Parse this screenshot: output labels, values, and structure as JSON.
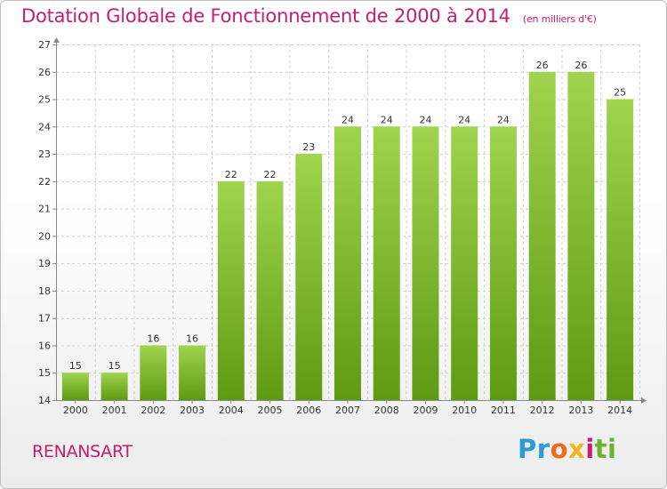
{
  "page": {
    "title": "Dotation Globale de Fonctionnement de 2000 à 2014",
    "subtitle": "(en milliers d'€)",
    "place_name": "RENANSART",
    "logo_text": "Proxiti",
    "logo_colors": [
      "#2f9ad8",
      "#ef6a1a",
      "#f2b51c",
      "#c41e6e",
      "#6bb22f"
    ]
  },
  "chart_data": {
    "type": "bar",
    "title": "Dotation Globale de Fonctionnement de 2000 à 2014",
    "subtitle": "(en milliers d'€)",
    "xlabel": "",
    "ylabel": "",
    "categories": [
      "2000",
      "2001",
      "2002",
      "2003",
      "2004",
      "2005",
      "2006",
      "2007",
      "2008",
      "2009",
      "2010",
      "2011",
      "2012",
      "2013",
      "2014"
    ],
    "values": [
      15,
      15,
      16,
      16,
      22,
      22,
      23,
      24,
      24,
      24,
      24,
      24,
      26,
      26,
      25
    ],
    "ylim": [
      14,
      27
    ],
    "yticks": [
      14,
      15,
      16,
      17,
      18,
      19,
      20,
      21,
      22,
      23,
      24,
      25,
      26,
      27
    ],
    "grid": true,
    "bar_color_top": "#a0d44e",
    "bar_color_bottom": "#5e9a12",
    "text_color": "#333333"
  }
}
